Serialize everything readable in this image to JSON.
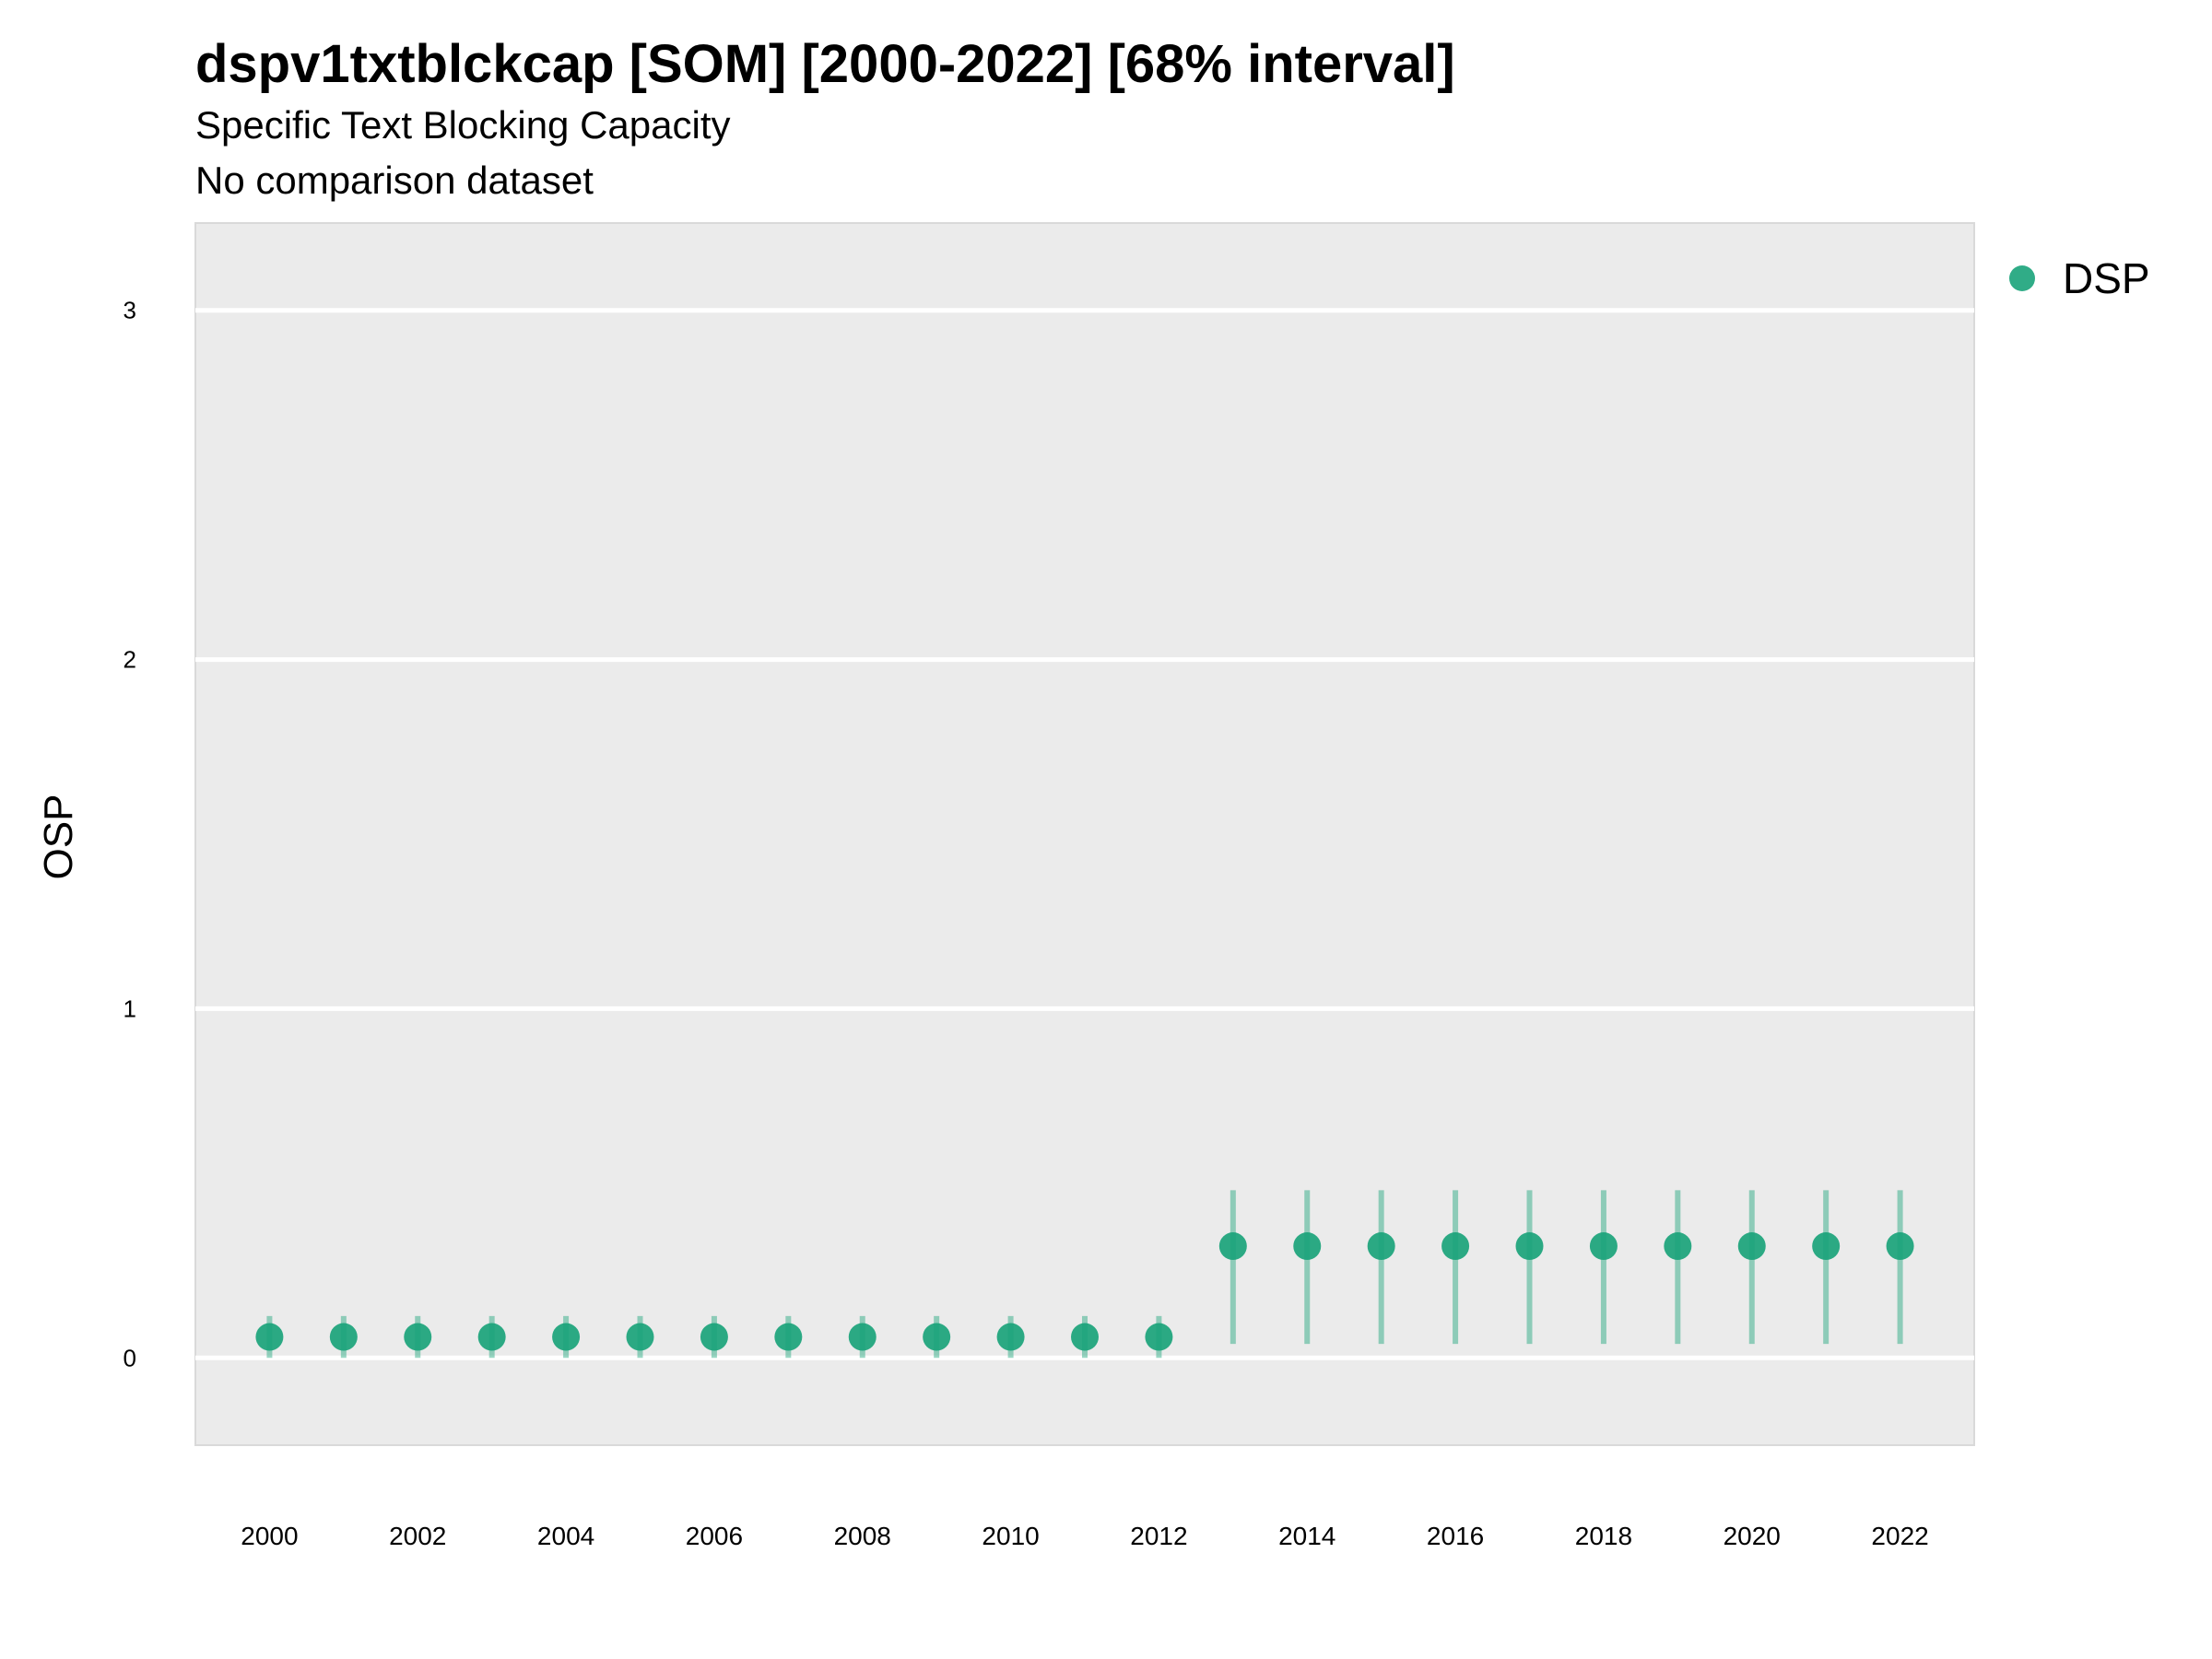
{
  "chart_data": {
    "type": "scatter",
    "title": "dspv1txtblckcap [SOM] [2000-2022] [68% interval]",
    "subtitle": "Specific Text Blocking Capacity",
    "subtitle2": "No comparison dataset",
    "xlabel": "",
    "ylabel": "OSP",
    "xlim": [
      1999,
      2023
    ],
    "ylim": [
      -0.25,
      3.25
    ],
    "x_ticks": [
      "2000",
      "2002",
      "2004",
      "2006",
      "2008",
      "2010",
      "2012",
      "2014",
      "2016",
      "2018",
      "2020",
      "2022"
    ],
    "y_ticks": [
      "0",
      "1",
      "2",
      "3"
    ],
    "grid": true,
    "legend_position": "top-right",
    "series": [
      {
        "name": "DSP",
        "color": "#1aa37a",
        "x": [
          2000,
          2001,
          2002,
          2003,
          2004,
          2005,
          2006,
          2007,
          2008,
          2009,
          2010,
          2011,
          2012,
          2013,
          2014,
          2015,
          2016,
          2017,
          2018,
          2019,
          2020,
          2021,
          2022
        ],
        "y": [
          0.06,
          0.06,
          0.06,
          0.06,
          0.06,
          0.06,
          0.06,
          0.06,
          0.06,
          0.06,
          0.06,
          0.06,
          0.06,
          0.32,
          0.32,
          0.32,
          0.32,
          0.32,
          0.32,
          0.32,
          0.32,
          0.32,
          0.32
        ],
        "lower": [
          0.0,
          0.0,
          0.0,
          0.0,
          0.0,
          0.0,
          0.0,
          0.0,
          0.0,
          0.0,
          0.0,
          0.0,
          0.0,
          0.04,
          0.04,
          0.04,
          0.04,
          0.04,
          0.04,
          0.04,
          0.04,
          0.04,
          0.04
        ],
        "upper": [
          0.12,
          0.12,
          0.12,
          0.12,
          0.12,
          0.12,
          0.12,
          0.12,
          0.12,
          0.12,
          0.12,
          0.12,
          0.12,
          0.48,
          0.48,
          0.48,
          0.48,
          0.48,
          0.48,
          0.48,
          0.48,
          0.48,
          0.48
        ]
      }
    ]
  }
}
